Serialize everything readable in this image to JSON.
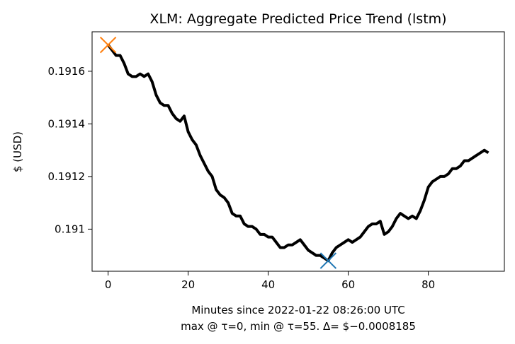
{
  "chart_data": {
    "type": "line",
    "title": "XLM: Aggregate Predicted Price Trend (lstm)",
    "xlabel": "Minutes since 2022-01-22 08:26:00 UTC",
    "xlabel_line2": "max @ τ=0, min @ τ=55. Δ= $−0.0008185",
    "ylabel": "$ (USD)",
    "xlim": [
      -4,
      99
    ],
    "ylim": [
      0.19084,
      0.19175
    ],
    "xticks": [
      0,
      20,
      40,
      60,
      80
    ],
    "xtick_labels": [
      "0",
      "20",
      "40",
      "60",
      "80"
    ],
    "yticks": [
      0.191,
      0.1912,
      0.1914,
      0.1916
    ],
    "ytick_labels": [
      "0.191",
      "0.1912",
      "0.1914",
      "0.1916"
    ],
    "grid": false,
    "line_color": "#000000",
    "series": [
      {
        "x": [
          0,
          1,
          2,
          3,
          4,
          5,
          6,
          7,
          8,
          9,
          10,
          11,
          12,
          13,
          14,
          15,
          16,
          17,
          18,
          19,
          20,
          21,
          22,
          23,
          24,
          25,
          26,
          27,
          28,
          29,
          30,
          31,
          32,
          33,
          34,
          35,
          36,
          37,
          38,
          39,
          40,
          41,
          42,
          43,
          44,
          45,
          46,
          47,
          48,
          49,
          50,
          51,
          52,
          53,
          54,
          55,
          56,
          57,
          58,
          59,
          60,
          61,
          62,
          63,
          64,
          65,
          66,
          67,
          68,
          69,
          70,
          71,
          72,
          73,
          74,
          75,
          76,
          77,
          78,
          79,
          80,
          81,
          82,
          83,
          84,
          85,
          86,
          87,
          88,
          89,
          90,
          91,
          92,
          93,
          94,
          95
        ],
        "values": [
          0.1917,
          0.19168,
          0.19166,
          0.19166,
          0.19163,
          0.19159,
          0.19158,
          0.19158,
          0.19159,
          0.19158,
          0.19159,
          0.19156,
          0.19151,
          0.19148,
          0.19147,
          0.19147,
          0.19144,
          0.19142,
          0.19141,
          0.19143,
          0.19137,
          0.19134,
          0.19132,
          0.19128,
          0.19125,
          0.19122,
          0.1912,
          0.19115,
          0.19113,
          0.19112,
          0.1911,
          0.19106,
          0.19105,
          0.19105,
          0.19102,
          0.19101,
          0.19101,
          0.191,
          0.19098,
          0.19098,
          0.19097,
          0.19097,
          0.19095,
          0.19093,
          0.19093,
          0.19094,
          0.19094,
          0.19095,
          0.19096,
          0.19094,
          0.19092,
          0.19091,
          0.1909,
          0.1909,
          0.19089,
          0.19088,
          0.19091,
          0.19093,
          0.19094,
          0.19095,
          0.19096,
          0.19095,
          0.19096,
          0.19097,
          0.19099,
          0.19101,
          0.19102,
          0.19102,
          0.19103,
          0.19098,
          0.19099,
          0.19101,
          0.19104,
          0.19106,
          0.19105,
          0.19104,
          0.19105,
          0.19104,
          0.19107,
          0.19111,
          0.19116,
          0.19118,
          0.19119,
          0.1912,
          0.1912,
          0.19121,
          0.19123,
          0.19123,
          0.19124,
          0.19126,
          0.19126,
          0.19127,
          0.19128,
          0.19129,
          0.1913,
          0.19129
        ]
      }
    ],
    "markers": [
      {
        "label": "max",
        "x": 0,
        "y": 0.1917,
        "color": "#ff7f0e"
      },
      {
        "label": "min",
        "x": 55,
        "y": 0.19088,
        "color": "#1f77b4"
      }
    ]
  }
}
